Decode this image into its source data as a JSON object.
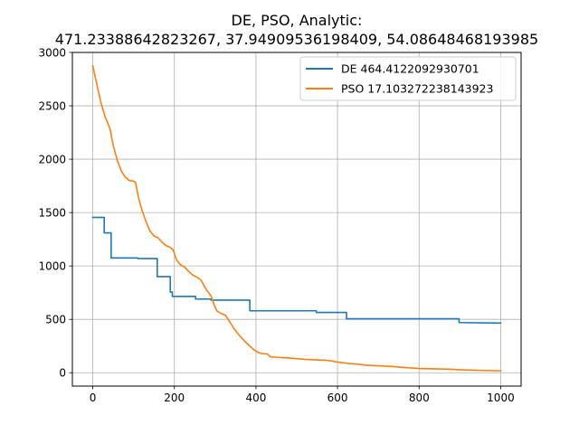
{
  "chart_data": {
    "type": "line",
    "title_lines": [
      "DE, PSO, Analytic:",
      "471.23388642823267, 37.94909536198409, 54.08648468193985"
    ],
    "xlabel": "",
    "ylabel": "",
    "xlim": [
      -50,
      1050
    ],
    "ylim": [
      -125,
      3000
    ],
    "x_ticks": [
      0,
      200,
      400,
      600,
      800,
      1000
    ],
    "y_ticks": [
      0,
      500,
      1000,
      1500,
      2000,
      2500,
      3000
    ],
    "grid": true,
    "legend_position": "top-right",
    "series": [
      {
        "name": "DE 464.4122092930701",
        "color": "#1f77b4",
        "step": true,
        "points": [
          [
            0,
            1455
          ],
          [
            28,
            1455
          ],
          [
            28,
            1310
          ],
          [
            45,
            1310
          ],
          [
            45,
            1075
          ],
          [
            110,
            1075
          ],
          [
            110,
            1070
          ],
          [
            158,
            1070
          ],
          [
            158,
            900
          ],
          [
            190,
            900
          ],
          [
            190,
            755
          ],
          [
            195,
            755
          ],
          [
            195,
            715
          ],
          [
            252,
            715
          ],
          [
            252,
            690
          ],
          [
            290,
            690
          ],
          [
            290,
            680
          ],
          [
            385,
            680
          ],
          [
            385,
            580
          ],
          [
            548,
            580
          ],
          [
            548,
            565
          ],
          [
            622,
            565
          ],
          [
            622,
            505
          ],
          [
            898,
            505
          ],
          [
            898,
            470
          ],
          [
            1000,
            465
          ]
        ]
      },
      {
        "name": "PSO 17.103272238143923",
        "color": "#ff7f0e",
        "step": false,
        "points": [
          [
            0,
            2875
          ],
          [
            10,
            2700
          ],
          [
            20,
            2530
          ],
          [
            30,
            2400
          ],
          [
            42,
            2290
          ],
          [
            50,
            2130
          ],
          [
            60,
            1990
          ],
          [
            70,
            1890
          ],
          [
            80,
            1830
          ],
          [
            90,
            1800
          ],
          [
            100,
            1795
          ],
          [
            105,
            1780
          ],
          [
            112,
            1640
          ],
          [
            120,
            1530
          ],
          [
            130,
            1420
          ],
          [
            140,
            1330
          ],
          [
            150,
            1280
          ],
          [
            160,
            1265
          ],
          [
            168,
            1230
          ],
          [
            180,
            1190
          ],
          [
            190,
            1175
          ],
          [
            197,
            1150
          ],
          [
            205,
            1060
          ],
          [
            215,
            1010
          ],
          [
            225,
            990
          ],
          [
            235,
            950
          ],
          [
            245,
            915
          ],
          [
            255,
            895
          ],
          [
            265,
            870
          ],
          [
            272,
            820
          ],
          [
            280,
            770
          ],
          [
            290,
            720
          ],
          [
            298,
            630
          ],
          [
            305,
            575
          ],
          [
            315,
            555
          ],
          [
            325,
            540
          ],
          [
            335,
            480
          ],
          [
            345,
            420
          ],
          [
            355,
            370
          ],
          [
            365,
            325
          ],
          [
            375,
            285
          ],
          [
            385,
            250
          ],
          [
            395,
            215
          ],
          [
            405,
            190
          ],
          [
            415,
            180
          ],
          [
            428,
            175
          ],
          [
            435,
            150
          ],
          [
            450,
            145
          ],
          [
            470,
            140
          ],
          [
            490,
            135
          ],
          [
            520,
            125
          ],
          [
            550,
            120
          ],
          [
            570,
            118
          ],
          [
            585,
            110
          ],
          [
            600,
            100
          ],
          [
            620,
            90
          ],
          [
            650,
            80
          ],
          [
            670,
            70
          ],
          [
            700,
            65
          ],
          [
            730,
            60
          ],
          [
            760,
            50
          ],
          [
            800,
            40
          ],
          [
            850,
            35
          ],
          [
            880,
            32
          ],
          [
            900,
            28
          ],
          [
            940,
            23
          ],
          [
            970,
            20
          ],
          [
            1000,
            18
          ]
        ]
      }
    ]
  }
}
